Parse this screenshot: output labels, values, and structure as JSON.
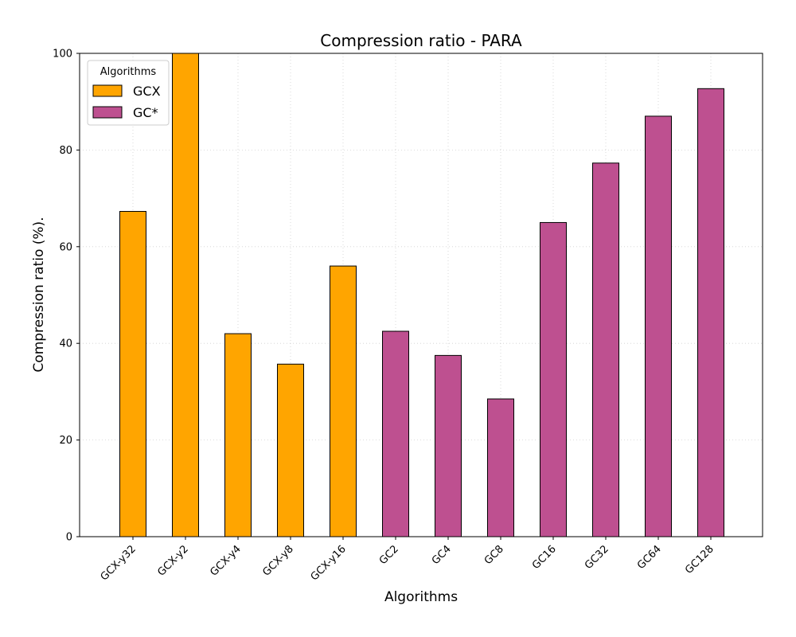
{
  "chart_data": {
    "type": "bar",
    "title": "Compression ratio -  PARA",
    "xlabel": "Algorithms",
    "ylabel": "Compression ratio (%).",
    "ylim": [
      0,
      100
    ],
    "yticks": [
      0,
      20,
      40,
      60,
      80,
      100
    ],
    "grid": true,
    "legend": {
      "title": "Algorithms",
      "placement": "top-left",
      "entries": [
        {
          "label": "GCX",
          "color": "#FFA500"
        },
        {
          "label": "GC*",
          "color": "#BE5090"
        }
      ]
    },
    "categories": [
      "GCX-y32",
      "GCX-y2",
      "GCX-y4",
      "GCX-y8",
      "GCX-y16",
      "GC2",
      "GC4",
      "GC8",
      "GC16",
      "GC32",
      "GC64",
      "GC128"
    ],
    "values": [
      67.3,
      100.0,
      42.0,
      35.7,
      56.0,
      42.5,
      37.5,
      28.5,
      65.0,
      77.3,
      87.0,
      92.7
    ],
    "groups": [
      "GCX",
      "GCX",
      "GCX",
      "GCX",
      "GCX",
      "GC*",
      "GC*",
      "GC*",
      "GC*",
      "GC*",
      "GC*",
      "GC*"
    ],
    "colors": {
      "GCX": "#FFA500",
      "GC*": "#BE5090"
    }
  }
}
